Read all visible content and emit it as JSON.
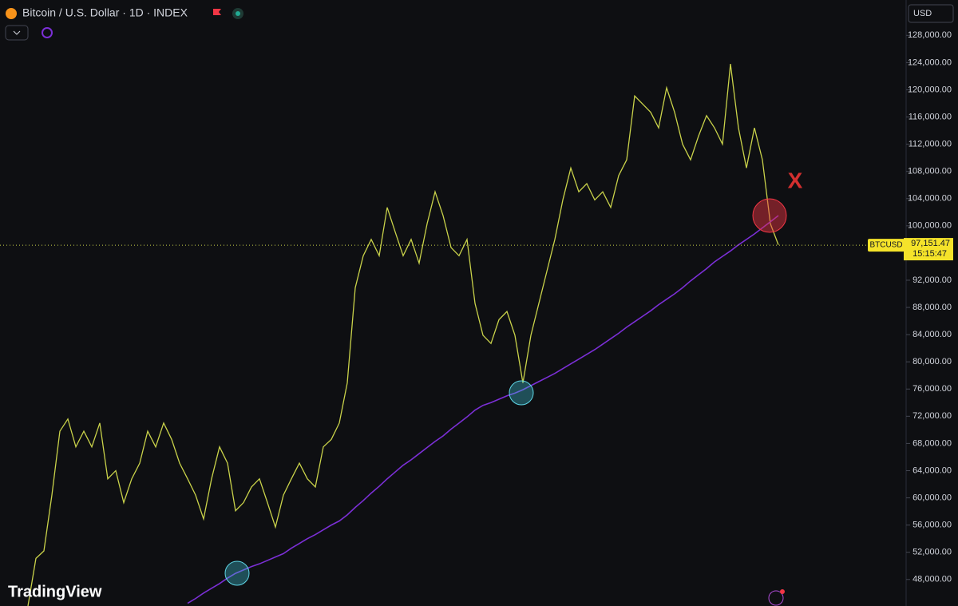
{
  "chart_data": {
    "type": "line",
    "title": "Bitcoin / U.S. Dollar · 1D · INDEX",
    "currency": "USD",
    "brand": "TradingView",
    "symbol": "BTCUSD",
    "last_price": {
      "value": 97151.47,
      "label": "97,151.47"
    },
    "countdown": "15:15:47",
    "annotation": "X",
    "ylim": [
      44100,
      133200
    ],
    "yticks": [
      {
        "value": 48000,
        "label": "48,000.00"
      },
      {
        "value": 52000,
        "label": "52,000.00"
      },
      {
        "value": 56000,
        "label": "56,000.00"
      },
      {
        "value": 60000,
        "label": "60,000.00"
      },
      {
        "value": 64000,
        "label": "64,000.00"
      },
      {
        "value": 68000,
        "label": "68,000.00"
      },
      {
        "value": 72000,
        "label": "72,000.00"
      },
      {
        "value": 76000,
        "label": "76,000.00"
      },
      {
        "value": 80000,
        "label": "80,000.00"
      },
      {
        "value": 84000,
        "label": "84,000.00"
      },
      {
        "value": 88000,
        "label": "88,000.00"
      },
      {
        "value": 92000,
        "label": "92,000.00"
      },
      {
        "value": 96000,
        "label": "96,000.00"
      },
      {
        "value": 100000,
        "label": "100,000.00"
      },
      {
        "value": 104000,
        "label": "104,000.00"
      },
      {
        "value": 108000,
        "label": "108,000.00"
      },
      {
        "value": 112000,
        "label": "112,000.00"
      },
      {
        "value": 116000,
        "label": "116,000.00"
      },
      {
        "value": 120000,
        "label": "120,000.00"
      },
      {
        "value": 124000,
        "label": "124,000.00"
      },
      {
        "value": 128000,
        "label": "128,000.00"
      }
    ],
    "series": [
      {
        "color": "#c9d24a",
        "values": [
          44100,
          51100,
          52200,
          60400,
          69800,
          71600,
          67500,
          69800,
          67500,
          71000,
          62800,
          64000,
          59300,
          62800,
          65100,
          69800,
          67500,
          71000,
          68600,
          65100,
          62800,
          60400,
          56900,
          62800,
          67500,
          65100,
          58100,
          59300,
          61600,
          62800,
          59300,
          55700,
          60400,
          62800,
          65100,
          62800,
          61600,
          67500,
          68600,
          71000,
          76900,
          90900,
          95600,
          98000,
          95600,
          102700,
          99100,
          95600,
          98000,
          94500,
          100300,
          105000,
          101500,
          96800,
          95600,
          98000,
          88600,
          83900,
          82700,
          86200,
          87400,
          83900,
          76900,
          83900,
          88600,
          93300,
          98000,
          103800,
          108500,
          105000,
          106200,
          103800,
          105000,
          102700,
          107400,
          109700,
          119100,
          117900,
          116700,
          114400,
          120300,
          116700,
          112000,
          109700,
          113200,
          116200,
          114400,
          112000,
          123800,
          114400,
          108500,
          114400,
          109700,
          100300,
          97200
        ]
      },
      {
        "color": "#7b2fd6",
        "values": [
          null,
          null,
          null,
          null,
          null,
          null,
          null,
          null,
          null,
          null,
          null,
          null,
          null,
          null,
          null,
          null,
          null,
          null,
          null,
          null,
          44500,
          45200,
          46000,
          46700,
          47400,
          48200,
          48900,
          49400,
          49900,
          50300,
          50800,
          51300,
          51800,
          52600,
          53300,
          54000,
          54600,
          55300,
          56000,
          56600,
          57500,
          58600,
          59600,
          60700,
          61700,
          62800,
          63800,
          64800,
          65600,
          66500,
          67400,
          68300,
          69100,
          70100,
          71000,
          71900,
          72900,
          73600,
          74000,
          74500,
          75000,
          75400,
          75900,
          76500,
          77100,
          77700,
          78300,
          79000,
          79700,
          80400,
          81100,
          81800,
          82600,
          83400,
          84200,
          85100,
          85900,
          86700,
          87500,
          88400,
          89200,
          90000,
          90900,
          91900,
          92800,
          93700,
          94700,
          95500,
          96300,
          97200,
          98000,
          98800,
          99700,
          100600,
          101500
        ]
      }
    ]
  }
}
